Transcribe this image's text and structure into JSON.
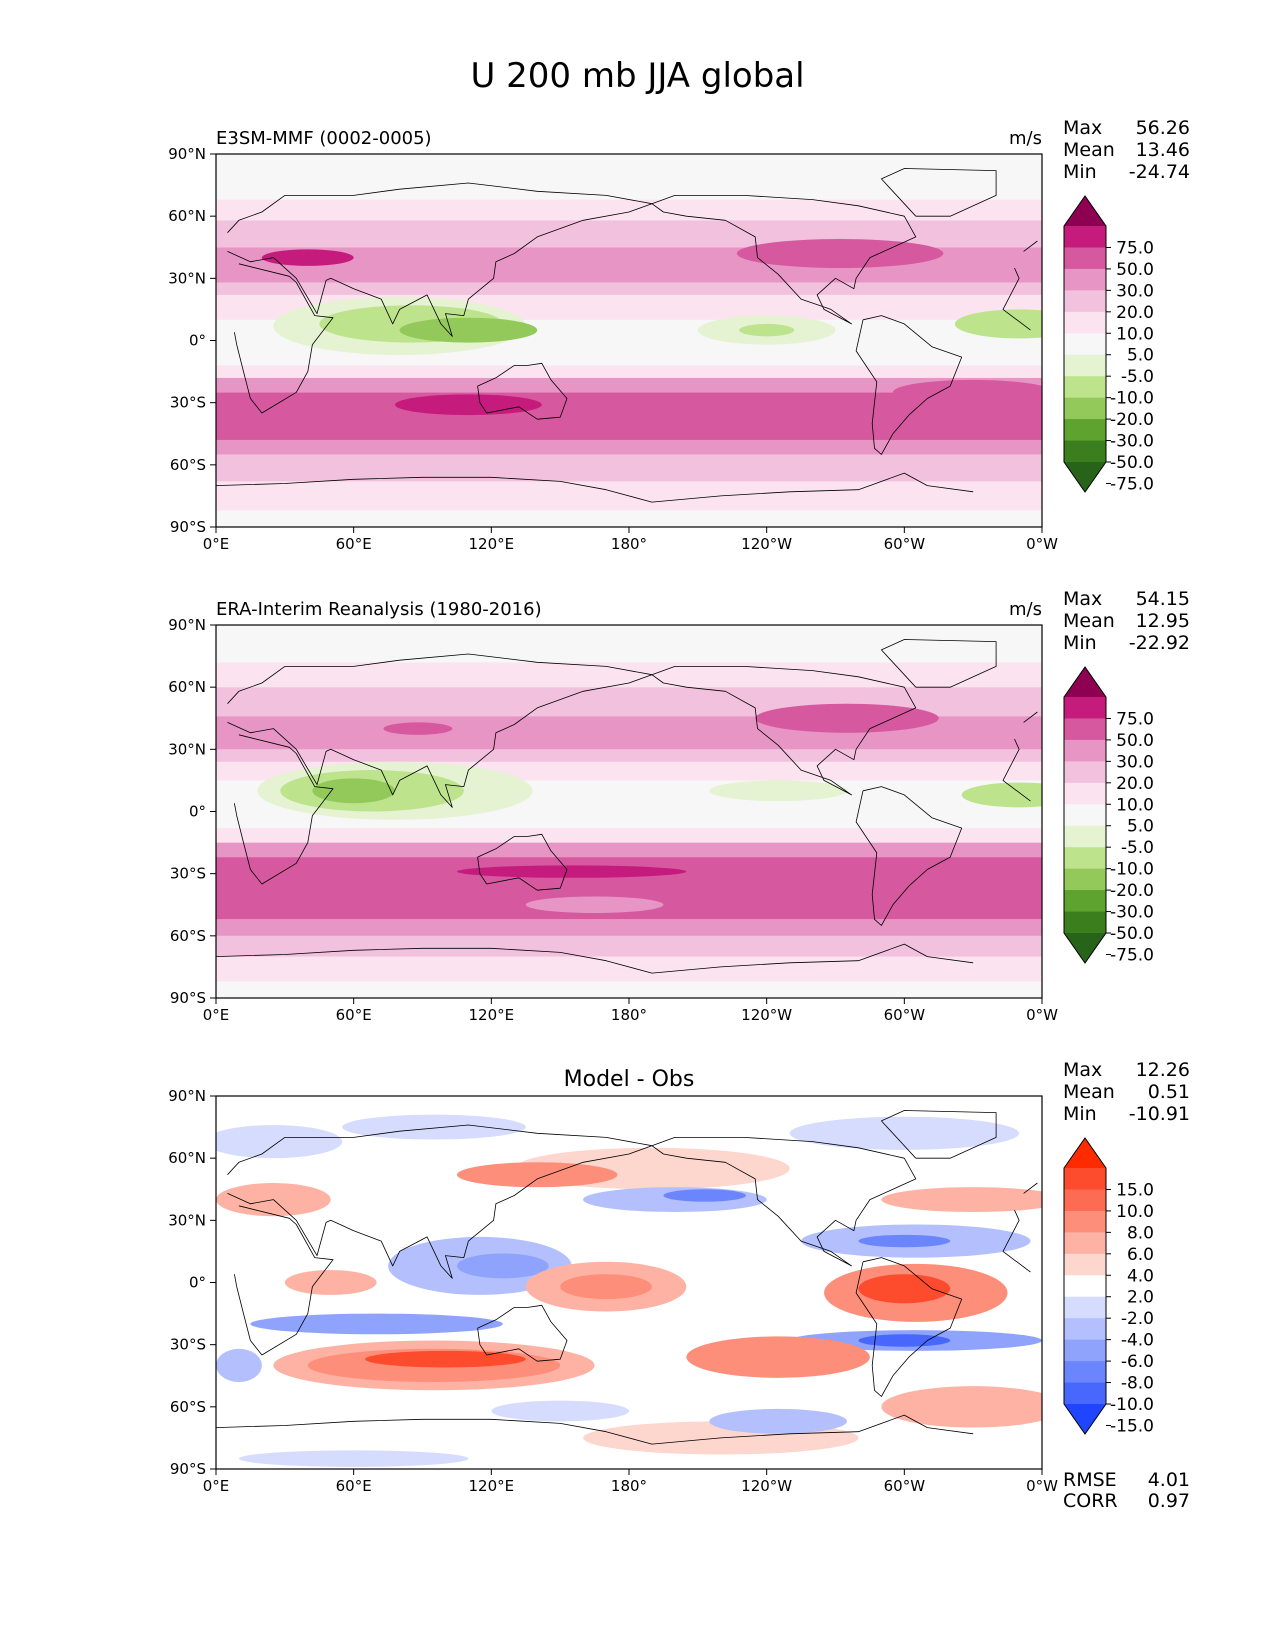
{
  "figure": {
    "title": "U 200 mb JJA global"
  },
  "chart_data": [
    {
      "type": "heatmap",
      "id": "test",
      "title": "E3SM-MMF (0002-0005)",
      "units": "m/s",
      "stats": [
        {
          "label": "Max",
          "value": "56.26"
        },
        {
          "label": "Mean",
          "value": "13.46"
        },
        {
          "label": "Min",
          "value": "-24.74"
        }
      ],
      "x_ticks": [
        "0°E",
        "60°E",
        "120°E",
        "180°",
        "120°W",
        "60°W",
        "0°W"
      ],
      "y_ticks": [
        "90°N",
        "60°N",
        "30°N",
        "0°",
        "30°S",
        "60°S",
        "90°S"
      ],
      "xlim": [
        0,
        360
      ],
      "ylim": [
        -90,
        90
      ],
      "colorbar": {
        "levels": [
          "75.0",
          "50.0",
          "30.0",
          "20.0",
          "10.0",
          "5.0",
          "-5.0",
          "-10.0",
          "-20.0",
          "-30.0",
          "-50.0",
          "-75.0"
        ],
        "colors": [
          "#8e0152",
          "#c51b7d",
          "#d6589f",
          "#e795c4",
          "#f1c1de",
          "#fbe3f0",
          "#f7f7f7",
          "#e5f3d3",
          "#bde48d",
          "#93c95a",
          "#5ea230",
          "#3b7e1e",
          "#276419"
        ]
      },
      "background": "#f7f7f7",
      "bands": [
        {
          "lat": [
            -90,
            -82
          ],
          "color": "#f7f7f7"
        },
        {
          "lat": [
            -82,
            -68
          ],
          "color": "#fbe3f0"
        },
        {
          "lat": [
            -68,
            -55
          ],
          "color": "#f1c1de"
        },
        {
          "lat": [
            -55,
            -48
          ],
          "color": "#e795c4"
        },
        {
          "lat": [
            -48,
            -25
          ],
          "color": "#d6589f"
        },
        {
          "lat": [
            -25,
            -18
          ],
          "color": "#e795c4"
        },
        {
          "lat": [
            -18,
            -12
          ],
          "color": "#fbe3f0"
        },
        {
          "lat": [
            -12,
            10
          ],
          "color": "#f7f7f7"
        },
        {
          "lat": [
            10,
            22
          ],
          "color": "#fbe3f0"
        },
        {
          "lat": [
            22,
            28
          ],
          "color": "#f1c1de"
        },
        {
          "lat": [
            28,
            45
          ],
          "color": "#e795c4"
        },
        {
          "lat": [
            45,
            58
          ],
          "color": "#f1c1de"
        },
        {
          "lat": [
            58,
            68
          ],
          "color": "#fbe3f0"
        },
        {
          "lat": [
            68,
            90
          ],
          "color": "#f7f7f7"
        }
      ],
      "blobs": [
        {
          "lon": 80,
          "lat": 7,
          "rlon": 55,
          "rlat": 14,
          "color": "#e5f3d3"
        },
        {
          "lon": 85,
          "lat": 8,
          "rlon": 40,
          "rlat": 9,
          "color": "#bde48d"
        },
        {
          "lon": 110,
          "lat": 5,
          "rlon": 30,
          "rlat": 6,
          "color": "#93c95a"
        },
        {
          "lon": 240,
          "lat": 5,
          "rlon": 30,
          "rlat": 7,
          "color": "#e5f3d3"
        },
        {
          "lon": 240,
          "lat": 5,
          "rlon": 12,
          "rlat": 3,
          "color": "#bde48d"
        },
        {
          "lon": 350,
          "lat": 8,
          "rlon": 28,
          "rlat": 7,
          "color": "#bde48d"
        },
        {
          "lon": 110,
          "lat": -31,
          "rlon": 32,
          "rlat": 5,
          "color": "#c51b7d"
        },
        {
          "lon": 40,
          "lat": 40,
          "rlon": 20,
          "rlat": 4,
          "color": "#c51b7d"
        },
        {
          "lon": 272,
          "lat": 42,
          "rlon": 45,
          "rlat": 7,
          "color": "#d6589f"
        },
        {
          "lon": 330,
          "lat": -25,
          "rlon": 35,
          "rlat": 6,
          "color": "#d6589f"
        }
      ]
    },
    {
      "type": "heatmap",
      "id": "reference",
      "title": "ERA-Interim Reanalysis (1980-2016)",
      "units": "m/s",
      "stats": [
        {
          "label": "Max",
          "value": "54.15"
        },
        {
          "label": "Mean",
          "value": "12.95"
        },
        {
          "label": "Min",
          "value": "-22.92"
        }
      ],
      "x_ticks": [
        "0°E",
        "60°E",
        "120°E",
        "180°",
        "120°W",
        "60°W",
        "0°W"
      ],
      "y_ticks": [
        "90°N",
        "60°N",
        "30°N",
        "0°",
        "30°S",
        "60°S",
        "90°S"
      ],
      "xlim": [
        0,
        360
      ],
      "ylim": [
        -90,
        90
      ],
      "colorbar": {
        "levels": [
          "75.0",
          "50.0",
          "30.0",
          "20.0",
          "10.0",
          "5.0",
          "-5.0",
          "-10.0",
          "-20.0",
          "-30.0",
          "-50.0",
          "-75.0"
        ],
        "colors": [
          "#8e0152",
          "#c51b7d",
          "#d6589f",
          "#e795c4",
          "#f1c1de",
          "#fbe3f0",
          "#f7f7f7",
          "#e5f3d3",
          "#bde48d",
          "#93c95a",
          "#5ea230",
          "#3b7e1e",
          "#276419"
        ]
      },
      "background": "#f7f7f7",
      "bands": [
        {
          "lat": [
            -90,
            -82
          ],
          "color": "#f7f7f7"
        },
        {
          "lat": [
            -82,
            -70
          ],
          "color": "#fbe3f0"
        },
        {
          "lat": [
            -70,
            -60
          ],
          "color": "#f1c1de"
        },
        {
          "lat": [
            -60,
            -52
          ],
          "color": "#e795c4"
        },
        {
          "lat": [
            -52,
            -22
          ],
          "color": "#d6589f"
        },
        {
          "lat": [
            -22,
            -15
          ],
          "color": "#e795c4"
        },
        {
          "lat": [
            -15,
            -8
          ],
          "color": "#fbe3f0"
        },
        {
          "lat": [
            -8,
            15
          ],
          "color": "#f7f7f7"
        },
        {
          "lat": [
            15,
            24
          ],
          "color": "#fbe3f0"
        },
        {
          "lat": [
            24,
            30
          ],
          "color": "#f1c1de"
        },
        {
          "lat": [
            30,
            46
          ],
          "color": "#e795c4"
        },
        {
          "lat": [
            46,
            60
          ],
          "color": "#f1c1de"
        },
        {
          "lat": [
            60,
            72
          ],
          "color": "#fbe3f0"
        },
        {
          "lat": [
            72,
            90
          ],
          "color": "#f7f7f7"
        }
      ],
      "blobs": [
        {
          "lon": 78,
          "lat": 10,
          "rlon": 60,
          "rlat": 14,
          "color": "#e5f3d3"
        },
        {
          "lon": 68,
          "lat": 10,
          "rlon": 40,
          "rlat": 10,
          "color": "#bde48d"
        },
        {
          "lon": 60,
          "lat": 10,
          "rlon": 18,
          "rlat": 6,
          "color": "#93c95a"
        },
        {
          "lon": 245,
          "lat": 10,
          "rlon": 30,
          "rlat": 5,
          "color": "#e5f3d3"
        },
        {
          "lon": 350,
          "lat": 8,
          "rlon": 25,
          "rlat": 6,
          "color": "#bde48d"
        },
        {
          "lon": 155,
          "lat": -29,
          "rlon": 50,
          "rlat": 3,
          "color": "#c51b7d"
        },
        {
          "lon": 88,
          "lat": 40,
          "rlon": 15,
          "rlat": 3,
          "color": "#d6589f"
        },
        {
          "lon": 275,
          "lat": 45,
          "rlon": 40,
          "rlat": 7,
          "color": "#d6589f"
        },
        {
          "lon": 165,
          "lat": -45,
          "rlon": 30,
          "rlat": 4,
          "color": "#e795c4"
        }
      ]
    },
    {
      "type": "heatmap",
      "id": "diff",
      "title": "Model - Obs",
      "units": "",
      "stats": [
        {
          "label": "Max",
          "value": "12.26"
        },
        {
          "label": "Mean",
          "value": "0.51"
        },
        {
          "label": "Min",
          "value": "-10.91"
        }
      ],
      "bottom_stats": [
        {
          "label": "RMSE",
          "value": "4.01"
        },
        {
          "label": "CORR",
          "value": "0.97"
        }
      ],
      "x_ticks": [
        "0°E",
        "60°E",
        "120°E",
        "180°",
        "120°W",
        "60°W",
        "0°W"
      ],
      "y_ticks": [
        "90°N",
        "60°N",
        "30°N",
        "0°",
        "30°S",
        "60°S",
        "90°S"
      ],
      "xlim": [
        0,
        360
      ],
      "ylim": [
        -90,
        90
      ],
      "colorbar": {
        "levels": [
          "15.0",
          "10.0",
          "8.0",
          "6.0",
          "4.0",
          "2.0",
          "-2.0",
          "-4.0",
          "-6.0",
          "-8.0",
          "-10.0",
          "-15.0"
        ],
        "colors": [
          "#ff2b00",
          "#fd4c2d",
          "#fd6c52",
          "#fd8e7a",
          "#fdb2a4",
          "#fdd6ce",
          "#ffffff",
          "#d6dcfd",
          "#b3c0fd",
          "#8fa3fd",
          "#6b86fd",
          "#4767fd",
          "#1f45ff"
        ]
      },
      "background": "#ffffff",
      "bands": [],
      "blobs": [
        {
          "lon": 25,
          "lat": 68,
          "rlon": 30,
          "rlat": 8,
          "color": "#d6dcfd"
        },
        {
          "lon": 95,
          "lat": 75,
          "rlon": 40,
          "rlat": 6,
          "color": "#d6dcfd"
        },
        {
          "lon": 300,
          "lat": 72,
          "rlon": 50,
          "rlat": 8,
          "color": "#d6dcfd"
        },
        {
          "lon": 190,
          "lat": 55,
          "rlon": 60,
          "rlat": 10,
          "color": "#fdd6ce"
        },
        {
          "lon": 140,
          "lat": 52,
          "rlon": 35,
          "rlat": 6,
          "color": "#fd8e7a"
        },
        {
          "lon": 25,
          "lat": 40,
          "rlon": 25,
          "rlat": 8,
          "color": "#fdb2a4"
        },
        {
          "lon": 200,
          "lat": 40,
          "rlon": 40,
          "rlat": 6,
          "color": "#b3c0fd"
        },
        {
          "lon": 213,
          "lat": 42,
          "rlon": 18,
          "rlat": 3,
          "color": "#6b86fd"
        },
        {
          "lon": 330,
          "lat": 40,
          "rlon": 40,
          "rlat": 6,
          "color": "#fdb2a4"
        },
        {
          "lon": 305,
          "lat": 20,
          "rlon": 50,
          "rlat": 8,
          "color": "#b3c0fd"
        },
        {
          "lon": 300,
          "lat": 20,
          "rlon": 20,
          "rlat": 3,
          "color": "#6b86fd"
        },
        {
          "lon": 115,
          "lat": 8,
          "rlon": 40,
          "rlat": 14,
          "color": "#b3c0fd"
        },
        {
          "lon": 125,
          "lat": 8,
          "rlon": 20,
          "rlat": 6,
          "color": "#8fa3fd"
        },
        {
          "lon": 170,
          "lat": -2,
          "rlon": 35,
          "rlat": 12,
          "color": "#fdb2a4"
        },
        {
          "lon": 170,
          "lat": -2,
          "rlon": 20,
          "rlat": 6,
          "color": "#fd8e7a"
        },
        {
          "lon": 50,
          "lat": 0,
          "rlon": 20,
          "rlat": 6,
          "color": "#fdb2a4"
        },
        {
          "lon": 305,
          "lat": -5,
          "rlon": 40,
          "rlat": 14,
          "color": "#fd8e7a"
        },
        {
          "lon": 300,
          "lat": -3,
          "rlon": 20,
          "rlat": 7,
          "color": "#fd4c2d"
        },
        {
          "lon": 70,
          "lat": -20,
          "rlon": 55,
          "rlat": 5,
          "color": "#8fa3fd"
        },
        {
          "lon": 305,
          "lat": -28,
          "rlon": 55,
          "rlat": 5,
          "color": "#8fa3fd"
        },
        {
          "lon": 300,
          "lat": -28,
          "rlon": 20,
          "rlat": 3,
          "color": "#4767fd"
        },
        {
          "lon": 95,
          "lat": -40,
          "rlon": 70,
          "rlat": 12,
          "color": "#fdb2a4"
        },
        {
          "lon": 95,
          "lat": -40,
          "rlon": 55,
          "rlat": 8,
          "color": "#fd8e7a"
        },
        {
          "lon": 100,
          "lat": -37,
          "rlon": 35,
          "rlat": 4,
          "color": "#fd4c2d"
        },
        {
          "lon": 245,
          "lat": -36,
          "rlon": 40,
          "rlat": 10,
          "color": "#fd8e7a"
        },
        {
          "lon": 330,
          "lat": -60,
          "rlon": 40,
          "rlat": 10,
          "color": "#fdb2a4"
        },
        {
          "lon": 220,
          "lat": -75,
          "rlon": 60,
          "rlat": 8,
          "color": "#fdd6ce"
        },
        {
          "lon": 245,
          "lat": -67,
          "rlon": 30,
          "rlat": 6,
          "color": "#b3c0fd"
        },
        {
          "lon": 150,
          "lat": -62,
          "rlon": 30,
          "rlat": 5,
          "color": "#d6dcfd"
        },
        {
          "lon": 60,
          "lat": -85,
          "rlon": 50,
          "rlat": 4,
          "color": "#d6dcfd"
        },
        {
          "lon": 10,
          "lat": -40,
          "rlon": 10,
          "rlat": 8,
          "color": "#b3c0fd"
        }
      ]
    }
  ]
}
